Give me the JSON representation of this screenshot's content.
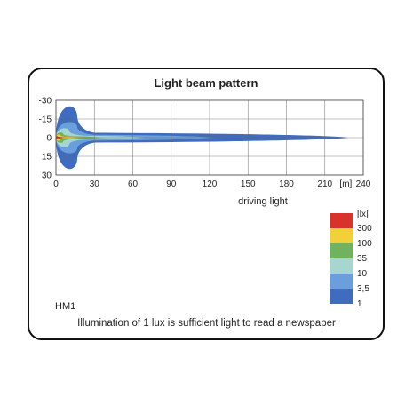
{
  "chart_data": {
    "type": "heatmap",
    "title": "Light beam pattern",
    "xlabel": "driving light",
    "x_unit": "[m]",
    "x_ticks": [
      0,
      30,
      60,
      90,
      120,
      150,
      180,
      210,
      240
    ],
    "y_ticks": [
      -30,
      -15,
      0,
      15,
      30
    ],
    "y_tick_labels": [
      "-30",
      "-15",
      "0",
      "15",
      "30"
    ],
    "xlim": [
      0,
      240
    ],
    "ylim": [
      -30,
      30
    ],
    "grid": true,
    "legend": {
      "unit": "[lx]",
      "position": "right, below plot",
      "levels": [
        {
          "label": "300",
          "value": 300,
          "color": "#d7332b"
        },
        {
          "label": "100",
          "value": 100,
          "color": "#f1d03a"
        },
        {
          "label": "35",
          "value": 35,
          "color": "#6fb35f"
        },
        {
          "label": "10",
          "value": 10,
          "color": "#a6d6cf"
        },
        {
          "label": "3,5",
          "value": 3.5,
          "color": "#6a9fdc"
        },
        {
          "label": "1",
          "value": 1,
          "color": "#3f6cbf"
        }
      ]
    },
    "contours": [
      {
        "lux": 1,
        "reach_m": 228,
        "near_half_width_deg": 30,
        "far_half_width_deg": 3
      },
      {
        "lux": 3.5,
        "reach_m": 123,
        "near_half_width_deg": 15,
        "far_half_width_deg": 1.8
      },
      {
        "lux": 10,
        "reach_m": 70,
        "near_half_width_deg": 9,
        "far_half_width_deg": 1.2
      },
      {
        "lux": 35,
        "reach_m": 38,
        "near_half_width_deg": 5,
        "far_half_width_deg": 0.9
      },
      {
        "lux": 100,
        "reach_m": 22,
        "near_half_width_deg": 3,
        "far_half_width_deg": 0.6
      },
      {
        "lux": 300,
        "reach_m": 10,
        "near_half_width_deg": 1.5,
        "far_half_width_deg": 0.4
      }
    ]
  },
  "model_code": "HM1",
  "footer_note": "Illumination of 1 lux is sufficient light to read a newspaper"
}
